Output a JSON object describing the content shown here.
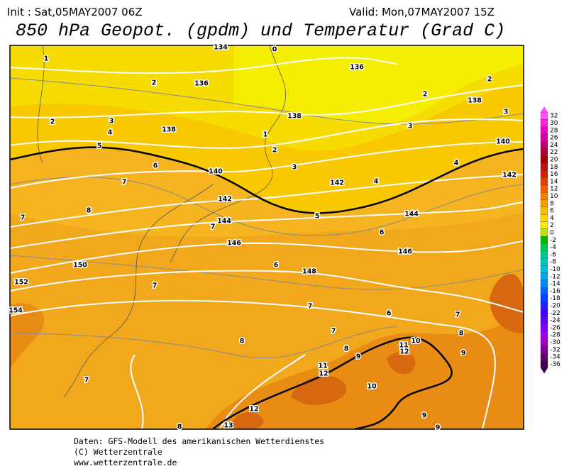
{
  "header": {
    "init": "Init : Sat,05MAY2007 06Z",
    "valid": "Valid: Mon,07MAY2007 15Z",
    "title": "850 hPa Geopot. (gpdm) und Temperatur (Grad C)"
  },
  "map_labels": [
    "1",
    "2",
    "136",
    "2",
    "3",
    "4",
    "138",
    "5",
    "6",
    "7",
    "140",
    "8",
    "142",
    "7",
    "144",
    "7",
    "146",
    "150",
    "152",
    "7",
    "154",
    "6",
    "148",
    "7",
    "6",
    "7",
    "8",
    "8",
    "9",
    "11",
    "12",
    "10",
    "12",
    "13",
    "8",
    "7",
    "136",
    "0",
    "134",
    "138",
    "1",
    "2",
    "3",
    "4",
    "142",
    "5",
    "144",
    "6",
    "146",
    "3",
    "4",
    "140",
    "142",
    "3",
    "2",
    "138",
    "2",
    "10",
    "11",
    "12",
    "7",
    "8",
    "9",
    "9",
    "9"
  ],
  "legend": {
    "labels": [
      "32",
      "30",
      "28",
      "26",
      "24",
      "22",
      "20",
      "18",
      "16",
      "14",
      "12",
      "10",
      "8",
      "6",
      "4",
      "2",
      "0",
      "-2",
      "-4",
      "-6",
      "-8",
      "-10",
      "-12",
      "-14",
      "-16",
      "-18",
      "-20",
      "-22",
      "-24",
      "-26",
      "-28",
      "-30",
      "-32",
      "-34",
      "-36"
    ],
    "colors": [
      "#ff50ff",
      "#ff20e8",
      "#f000c8",
      "#d800a0",
      "#c00070",
      "#a80030",
      "#a00000",
      "#c01010",
      "#d82000",
      "#e84000",
      "#f06000",
      "#f08000",
      "#f5a000",
      "#f8c000",
      "#fad800",
      "#f5f000",
      "#c0e000",
      "#00b800",
      "#00c850",
      "#00c890",
      "#00c8b8",
      "#00c0e0",
      "#00a8f0",
      "#0088ff",
      "#0060ff",
      "#0040ff",
      "#2020ff",
      "#4000ff",
      "#6000ff",
      "#8000ff",
      "#a000f0",
      "#a000c0",
      "#800098",
      "#600070",
      "#400050"
    ]
  },
  "footer": {
    "line1": "Daten: GFS-Modell des amerikanischen Wetterdienstes",
    "line2": "(C) Wetterzentrale",
    "line3": "www.wetterzentrale.de"
  }
}
